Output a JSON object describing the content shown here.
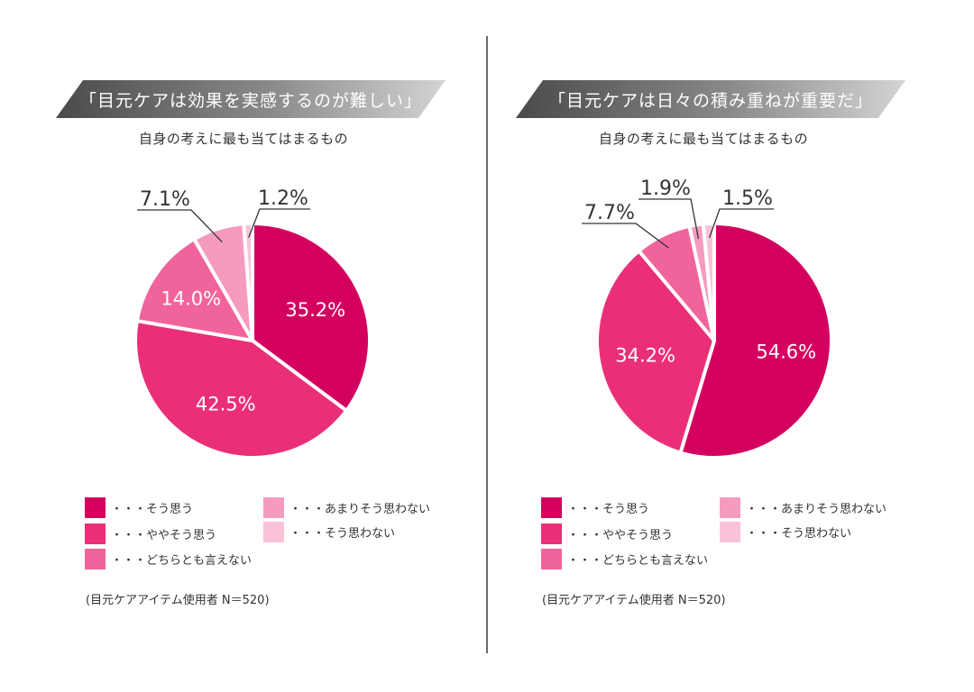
{
  "chart_data": [
    {
      "type": "pie",
      "title": "「目元ケアは効果を実感するのが難しい」",
      "subtitle": "自身の考えに最も当てはまるもの",
      "categories": [
        "そう思う",
        "ややそう思う",
        "どちらとも言えない",
        "あまりそう思わない",
        "そう思わない"
      ],
      "values": [
        35.2,
        42.5,
        14.0,
        7.1,
        1.2
      ],
      "labels": [
        "35.2%",
        "42.5%",
        "14.0%",
        "7.1%",
        "1.2%"
      ],
      "note": "(目元ケアアイテム使用者 N＝520)"
    },
    {
      "type": "pie",
      "title": "「目元ケアは日々の積み重ねが重要だ」",
      "subtitle": "自身の考えに最も当てはまるもの",
      "categories": [
        "そう思う",
        "ややそう思う",
        "どちらとも言えない",
        "あまりそう思わない",
        "そう思わない"
      ],
      "values": [
        54.6,
        34.2,
        7.7,
        1.9,
        1.5
      ],
      "labels": [
        "54.6%",
        "34.2%",
        "7.7%",
        "1.9%",
        "1.5%"
      ],
      "note": "(目元ケアアイテム使用者 N＝520)"
    }
  ],
  "legend": {
    "prefix": "・・・",
    "items": [
      "そう思う",
      "ややそう思う",
      "どちらとも言えない",
      "あまりそう思わない",
      "そう思わない"
    ]
  },
  "colors": [
    "#d4005f",
    "#ea2f78",
    "#f1649b",
    "#f59bbf",
    "#f9c2d8"
  ],
  "label_color": "#ffffff",
  "callout_color": "#333333"
}
